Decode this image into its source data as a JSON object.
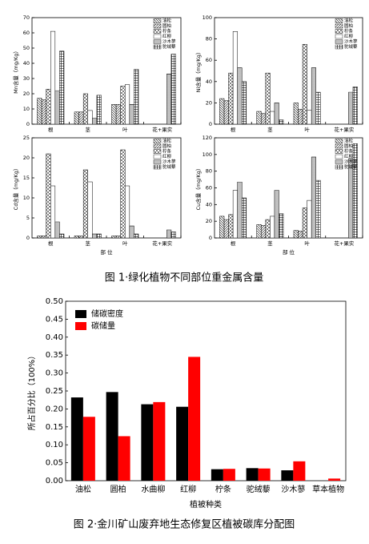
{
  "chart_data": [
    {
      "type": "bar",
      "y_label": "Mn含量（mg/Kg）",
      "ylim": [
        0,
        70
      ],
      "yticks": [
        0,
        10,
        20,
        30,
        40,
        50,
        60,
        70
      ],
      "categories": [
        "根",
        "茎",
        "叶",
        "花+果实"
      ],
      "series": [
        {
          "name": "油松",
          "color": "#000",
          "pattern": "bdiag",
          "values": [
            17,
            8,
            13,
            0
          ]
        },
        {
          "name": "圆柏",
          "color": "#000",
          "pattern": "diag",
          "values": [
            16,
            8,
            13,
            0
          ]
        },
        {
          "name": "柠条",
          "color": "#000",
          "pattern": "cross",
          "values": [
            23,
            20,
            25,
            0
          ]
        },
        {
          "name": "红柳",
          "color": "#000",
          "pattern": "none",
          "values": [
            61,
            9,
            26,
            0
          ]
        },
        {
          "name": "沙木蓼",
          "color": "#000",
          "pattern": "horiz",
          "values": [
            22,
            4,
            13,
            33
          ]
        },
        {
          "name": "驼绒藜",
          "color": "#000",
          "pattern": "grid",
          "values": [
            48,
            19,
            36,
            46
          ]
        }
      ]
    },
    {
      "type": "bar",
      "y_label": "Ni含量（mg/Kg）",
      "ylim": [
        0,
        100
      ],
      "yticks": [
        0,
        20,
        40,
        60,
        80,
        100
      ],
      "categories": [
        "根",
        "茎",
        "叶",
        "花+果实"
      ],
      "series": [
        {
          "name": "油松",
          "color": "#000",
          "pattern": "bdiag",
          "values": [
            24,
            12,
            20,
            0
          ]
        },
        {
          "name": "圆柏",
          "color": "#000",
          "pattern": "diag",
          "values": [
            22,
            10,
            14,
            0
          ]
        },
        {
          "name": "柠条",
          "color": "#000",
          "pattern": "cross",
          "values": [
            48,
            48,
            75,
            0
          ]
        },
        {
          "name": "红柳",
          "color": "#000",
          "pattern": "none",
          "values": [
            87,
            12,
            13,
            0
          ]
        },
        {
          "name": "沙木蓼",
          "color": "#000",
          "pattern": "horiz",
          "values": [
            53,
            20,
            53,
            30
          ]
        },
        {
          "name": "驼绒藜",
          "color": "#000",
          "pattern": "grid",
          "values": [
            40,
            4,
            30,
            35
          ]
        }
      ]
    },
    {
      "type": "bar",
      "y_label": "Cd含量（mg/Kg）",
      "x_label": "部 位",
      "ylim": [
        0,
        25
      ],
      "yticks": [
        0,
        5,
        10,
        15,
        20,
        25
      ],
      "categories": [
        "根",
        "茎",
        "叶",
        "花+果实"
      ],
      "series": [
        {
          "name": "油松",
          "color": "#000",
          "pattern": "bdiag",
          "values": [
            0.5,
            0.5,
            0.5,
            0
          ]
        },
        {
          "name": "圆柏",
          "color": "#000",
          "pattern": "diag",
          "values": [
            0.5,
            0.5,
            0.5,
            0
          ]
        },
        {
          "name": "柠条",
          "color": "#000",
          "pattern": "cross",
          "values": [
            21,
            17,
            22,
            0
          ]
        },
        {
          "name": "红柳",
          "color": "#000",
          "pattern": "none",
          "values": [
            13,
            14,
            13,
            0
          ]
        },
        {
          "name": "沙木蓼",
          "color": "#000",
          "pattern": "horiz",
          "values": [
            4,
            1,
            3,
            2
          ]
        },
        {
          "name": "驼绒藜",
          "color": "#000",
          "pattern": "grid",
          "values": [
            1,
            1,
            1,
            1.5
          ]
        }
      ]
    },
    {
      "type": "bar",
      "y_label": "Cu含量（mg/Kg）",
      "x_label": "部 位",
      "ylim": [
        0,
        120
      ],
      "yticks": [
        0,
        20,
        40,
        60,
        80,
        100,
        120
      ],
      "categories": [
        "根",
        "茎",
        "叶",
        "花+果实"
      ],
      "series": [
        {
          "name": "油松",
          "color": "#000",
          "pattern": "bdiag",
          "values": [
            26,
            16,
            9,
            0
          ]
        },
        {
          "name": "圆柏",
          "color": "#000",
          "pattern": "diag",
          "values": [
            22,
            15,
            8,
            0
          ]
        },
        {
          "name": "柠条",
          "color": "#000",
          "pattern": "cross",
          "values": [
            28,
            22,
            36,
            0
          ]
        },
        {
          "name": "红柳",
          "color": "#000",
          "pattern": "none",
          "values": [
            57,
            26,
            45,
            0
          ]
        },
        {
          "name": "沙木蓼",
          "color": "#000",
          "pattern": "horiz",
          "values": [
            67,
            57,
            97,
            95
          ]
        },
        {
          "name": "驼绒藜",
          "color": "#000",
          "pattern": "grid",
          "values": [
            48,
            29,
            69,
            113
          ]
        }
      ]
    },
    {
      "type": "bar",
      "y_label": "所占百分比（100%）",
      "x_label": "植被种类",
      "ylim": [
        0,
        0.5
      ],
      "yticks": [
        {
          "value": 0,
          "label": "0.00"
        },
        {
          "value": 0.05,
          "label": "0.05"
        },
        {
          "value": 0.1,
          "label": "0.10"
        },
        {
          "value": 0.15,
          "label": "0.15"
        },
        {
          "value": 0.2,
          "label": "0.20"
        },
        {
          "value": 0.25,
          "label": "0.25"
        },
        {
          "value": 0.3,
          "label": "0.30"
        },
        {
          "value": 0.35,
          "label": "0.35"
        },
        {
          "value": 0.4,
          "label": "0.40"
        },
        {
          "value": 0.45,
          "label": "0.45"
        },
        {
          "value": 0.5,
          "label": "0.50"
        }
      ],
      "categories": [
        "油松",
        "圆柏",
        "水曲柳",
        "红柳",
        "柠条",
        "驼绒藜",
        "沙木蓼",
        "草本植物"
      ],
      "series": [
        {
          "name": "储碳密度",
          "color": "#000000",
          "pattern": "solid",
          "values": [
            0.232,
            0.247,
            0.213,
            0.206,
            0.032,
            0.035,
            0.029,
            0
          ]
        },
        {
          "name": "碳储量",
          "color": "#ff0000",
          "pattern": "solid",
          "values": [
            0.178,
            0.124,
            0.219,
            0.345,
            0.033,
            0.034,
            0.054,
            0.006
          ]
        }
      ]
    }
  ],
  "captions": [
    "图 1·绿化植物不同部位重金属含量",
    "图 2·金川矿山废弃地生态修复区植被碳库分配图"
  ]
}
